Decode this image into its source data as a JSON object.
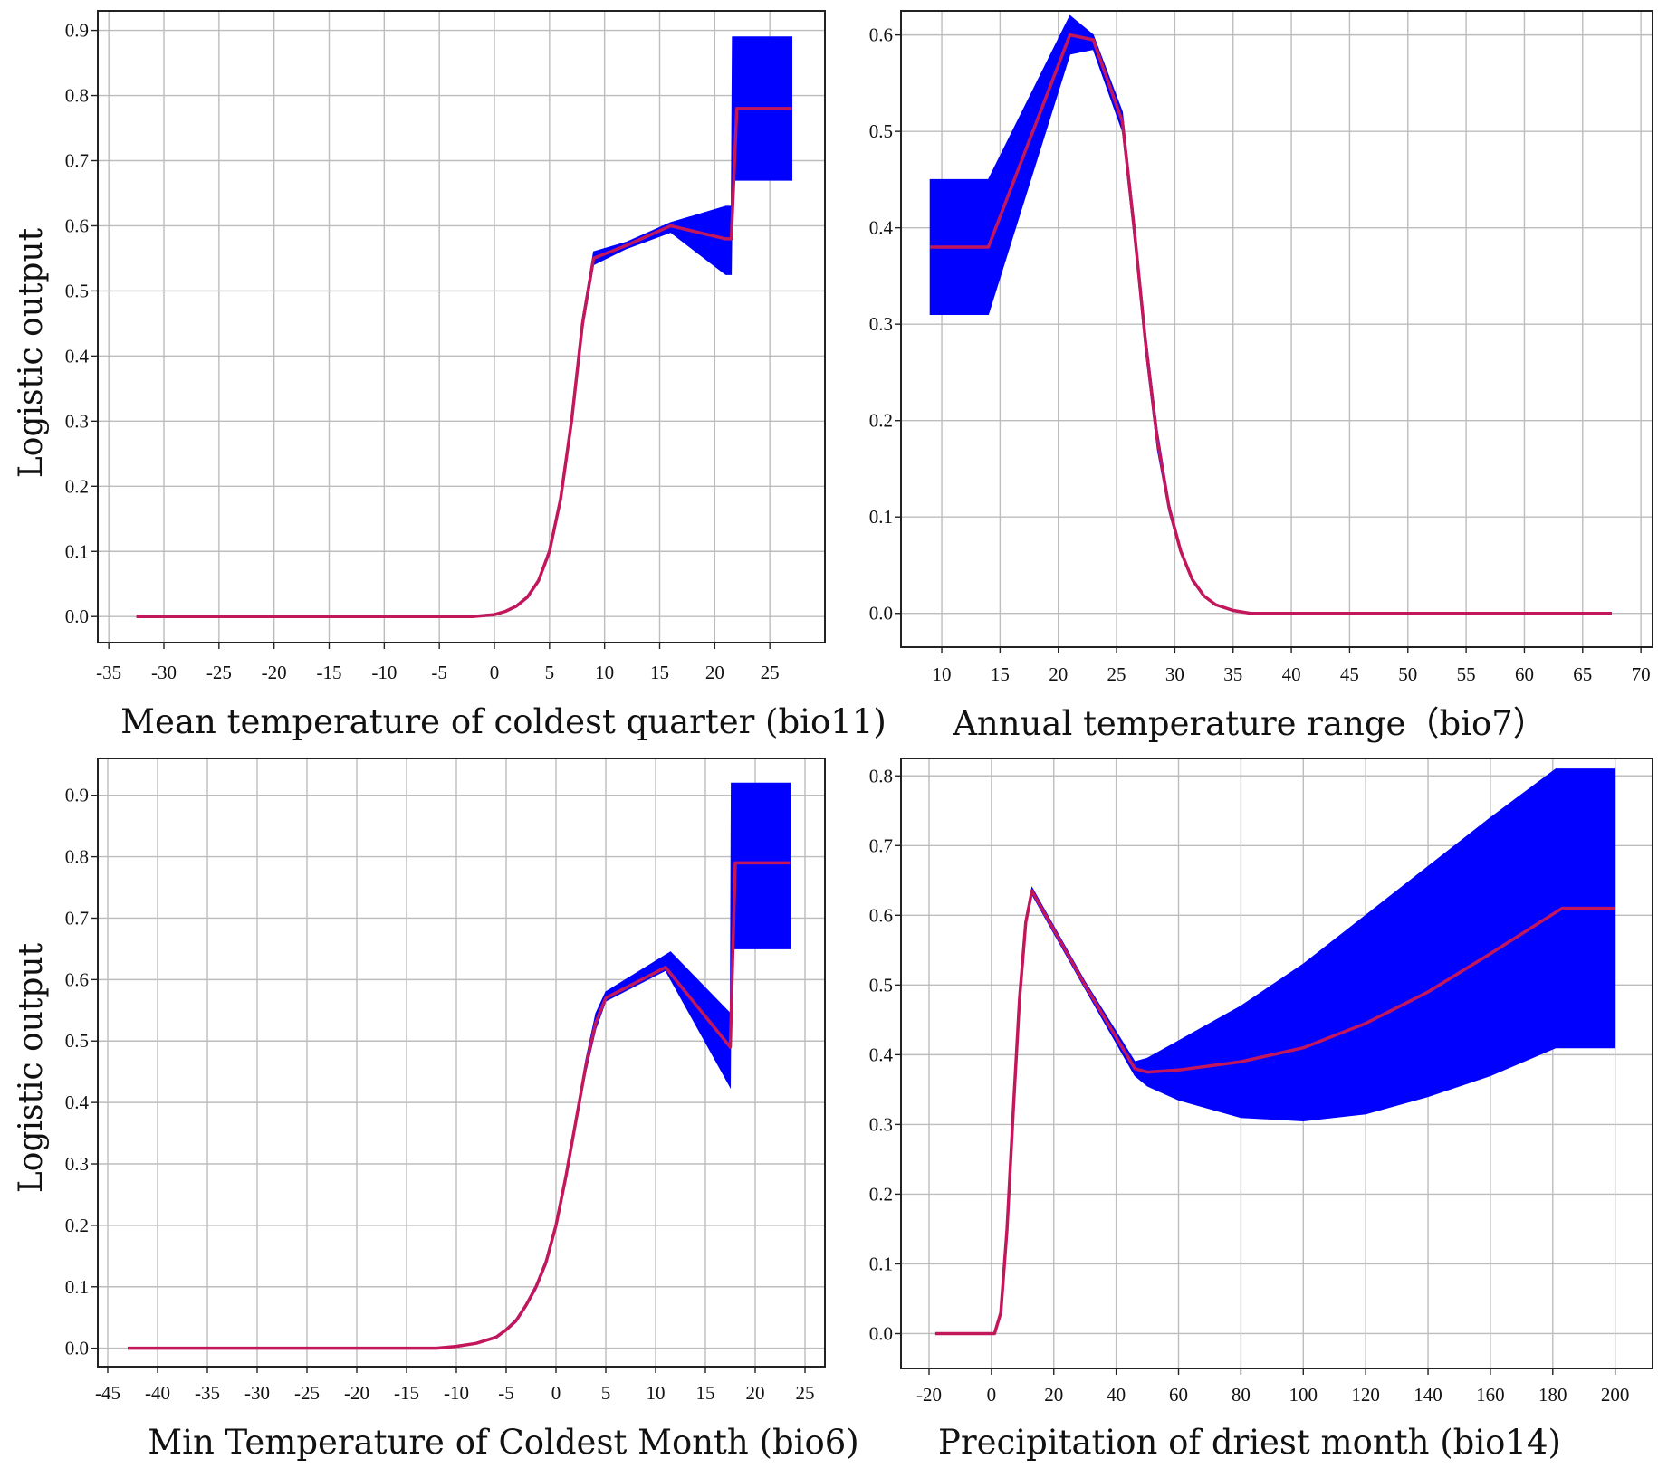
{
  "chart_data": [
    {
      "type": "line",
      "panel": "top-left",
      "ylabel": "Logistic output",
      "xlabel": "Mean temperature of coldest quarter (bio11)",
      "xlim": [
        -36,
        30
      ],
      "ylim": [
        -0.04,
        0.93
      ],
      "xticks": [
        -35,
        -30,
        -25,
        -20,
        -15,
        -10,
        -5,
        0,
        5,
        10,
        15,
        20,
        25
      ],
      "yticks": [
        0.0,
        0.1,
        0.2,
        0.3,
        0.4,
        0.5,
        0.6,
        0.7,
        0.8,
        0.9
      ],
      "ytick_labels": [
        "0.0",
        "0.1",
        "0.2",
        "0.3",
        "0.4",
        "0.5",
        "0.6",
        "0.7",
        "0.8",
        "0.9"
      ],
      "grid": true,
      "mean": {
        "x": [
          -32.5,
          -2,
          0,
          1,
          2,
          3,
          4,
          5,
          6,
          7,
          8,
          9,
          12,
          16,
          21,
          21.5,
          22,
          27
        ],
        "y": [
          0.0,
          0.0,
          0.003,
          0.008,
          0.016,
          0.03,
          0.055,
          0.1,
          0.18,
          0.3,
          0.45,
          0.55,
          0.57,
          0.6,
          0.58,
          0.58,
          0.78,
          0.78
        ]
      },
      "upper": {
        "x": [
          -32.5,
          -2,
          0,
          1,
          2,
          3,
          4,
          5,
          6,
          7,
          8,
          9,
          12,
          16,
          21,
          21.5,
          21.6,
          27
        ],
        "y": [
          0.0,
          0.0,
          0.004,
          0.009,
          0.018,
          0.032,
          0.058,
          0.105,
          0.185,
          0.31,
          0.46,
          0.56,
          0.575,
          0.605,
          0.63,
          0.63,
          0.89,
          0.89
        ]
      },
      "lower": {
        "x": [
          -32.5,
          -2,
          0,
          1,
          2,
          3,
          4,
          5,
          6,
          7,
          8,
          9,
          12,
          16,
          21,
          21.5,
          21.6,
          27
        ],
        "y": [
          0.0,
          0.0,
          0.002,
          0.007,
          0.014,
          0.028,
          0.052,
          0.095,
          0.175,
          0.29,
          0.44,
          0.54,
          0.565,
          0.59,
          0.525,
          0.525,
          0.67,
          0.67
        ]
      }
    },
    {
      "type": "line",
      "panel": "top-right",
      "ylabel": "",
      "xlabel": "Annual temperature range（bio7）",
      "xlim": [
        6.5,
        71
      ],
      "ylim": [
        -0.035,
        0.625
      ],
      "xticks": [
        10,
        15,
        20,
        25,
        30,
        35,
        40,
        45,
        50,
        55,
        60,
        65,
        70
      ],
      "yticks": [
        0.0,
        0.1,
        0.2,
        0.3,
        0.4,
        0.5,
        0.6
      ],
      "ytick_labels": [
        "0.0",
        "0.1",
        "0.2",
        "0.3",
        "0.4",
        "0.5",
        "0.6"
      ],
      "grid": true,
      "mean": {
        "x": [
          9,
          14,
          21,
          23,
          25.5,
          26.5,
          27.5,
          28.5,
          29.5,
          30.5,
          31.5,
          32.5,
          33.5,
          35,
          36.5,
          67.5
        ],
        "y": [
          0.38,
          0.38,
          0.6,
          0.595,
          0.51,
          0.4,
          0.28,
          0.18,
          0.11,
          0.065,
          0.035,
          0.018,
          0.009,
          0.003,
          0.0,
          0.0
        ]
      },
      "upper": {
        "x": [
          9,
          14,
          21,
          23,
          25.5,
          26.5,
          27.5,
          28.5,
          29.5,
          30.5,
          31.5,
          32.5,
          33.5,
          35,
          36.5,
          67.5
        ],
        "y": [
          0.45,
          0.45,
          0.62,
          0.6,
          0.52,
          0.41,
          0.29,
          0.19,
          0.115,
          0.068,
          0.037,
          0.019,
          0.01,
          0.004,
          0.0,
          0.0
        ]
      },
      "lower": {
        "x": [
          9,
          14,
          21,
          23,
          25.5,
          26.5,
          27.5,
          28.5,
          29.5,
          30.5,
          31.5,
          32.5,
          33.5,
          35,
          36.5,
          67.5
        ],
        "y": [
          0.31,
          0.31,
          0.58,
          0.585,
          0.5,
          0.39,
          0.27,
          0.17,
          0.105,
          0.062,
          0.033,
          0.017,
          0.008,
          0.002,
          0.0,
          0.0
        ]
      }
    },
    {
      "type": "line",
      "panel": "bottom-left",
      "ylabel": "Logistic output",
      "xlabel": "Min Temperature of Coldest Month (bio6)",
      "xlim": [
        -46,
        27
      ],
      "ylim": [
        -0.03,
        0.96
      ],
      "xticks": [
        -45,
        -40,
        -35,
        -30,
        -25,
        -20,
        -15,
        -10,
        -5,
        0,
        5,
        10,
        15,
        20,
        25
      ],
      "yticks": [
        0.0,
        0.1,
        0.2,
        0.3,
        0.4,
        0.5,
        0.6,
        0.7,
        0.8,
        0.9
      ],
      "ytick_labels": [
        "0.0",
        "0.1",
        "0.2",
        "0.3",
        "0.4",
        "0.5",
        "0.6",
        "0.7",
        "0.8",
        "0.9"
      ],
      "grid": true,
      "mean": {
        "x": [
          -43,
          -12,
          -10,
          -8,
          -6,
          -5,
          -4,
          -3,
          -2,
          -1,
          0,
          1,
          2,
          3,
          4,
          5,
          11,
          17.5,
          18,
          23.5
        ],
        "y": [
          0.0,
          0.0,
          0.003,
          0.008,
          0.018,
          0.03,
          0.045,
          0.07,
          0.1,
          0.14,
          0.2,
          0.28,
          0.37,
          0.46,
          0.53,
          0.57,
          0.62,
          0.49,
          0.79,
          0.79
        ]
      },
      "upper": {
        "x": [
          -43,
          -12,
          -10,
          -8,
          -6,
          -5,
          -4,
          -3,
          -2,
          -1,
          0,
          1,
          2,
          3,
          4,
          5,
          11.5,
          17.5,
          17.6,
          23.5
        ],
        "y": [
          0.0,
          0.0,
          0.004,
          0.009,
          0.02,
          0.032,
          0.048,
          0.073,
          0.104,
          0.145,
          0.205,
          0.285,
          0.375,
          0.47,
          0.545,
          0.58,
          0.645,
          0.545,
          0.92,
          0.92
        ]
      },
      "lower": {
        "x": [
          -43,
          -12,
          -10,
          -8,
          -6,
          -5,
          -4,
          -3,
          -2,
          -1,
          0,
          1,
          2,
          3,
          4,
          5,
          11,
          17.5,
          17.6,
          23.5
        ],
        "y": [
          0.0,
          0.0,
          0.002,
          0.007,
          0.016,
          0.028,
          0.042,
          0.067,
          0.096,
          0.135,
          0.195,
          0.275,
          0.365,
          0.45,
          0.52,
          0.565,
          0.615,
          0.425,
          0.65,
          0.65
        ]
      }
    },
    {
      "type": "line",
      "panel": "bottom-right",
      "ylabel": "",
      "xlabel": "Precipitation of driest month (bio14)",
      "xlim": [
        -29,
        212
      ],
      "ylim": [
        -0.05,
        0.825
      ],
      "xticks": [
        -20,
        0,
        20,
        40,
        60,
        80,
        100,
        120,
        140,
        160,
        180,
        200
      ],
      "yticks": [
        0.0,
        0.1,
        0.2,
        0.3,
        0.4,
        0.5,
        0.6,
        0.7,
        0.8
      ],
      "ytick_labels": [
        "0.0",
        "0.1",
        "0.2",
        "0.3",
        "0.4",
        "0.5",
        "0.6",
        "0.7",
        "0.8"
      ],
      "grid": true,
      "mean": {
        "x": [
          -18,
          1,
          3,
          5,
          7,
          9,
          11,
          13,
          30,
          46,
          50,
          60,
          80,
          100,
          120,
          140,
          160,
          183,
          200
        ],
        "y": [
          0.0,
          0.0,
          0.03,
          0.15,
          0.32,
          0.48,
          0.59,
          0.635,
          0.5,
          0.38,
          0.375,
          0.378,
          0.39,
          0.41,
          0.445,
          0.49,
          0.545,
          0.61,
          0.61
        ]
      },
      "upper": {
        "x": [
          -18,
          1,
          3,
          5,
          7,
          9,
          11,
          13,
          30,
          46,
          50,
          60,
          80,
          100,
          120,
          140,
          160,
          181,
          200
        ],
        "y": [
          0.0,
          0.0,
          0.032,
          0.155,
          0.325,
          0.485,
          0.595,
          0.64,
          0.505,
          0.39,
          0.395,
          0.42,
          0.47,
          0.53,
          0.6,
          0.67,
          0.74,
          0.81,
          0.81
        ]
      },
      "lower": {
        "x": [
          -18,
          1,
          3,
          5,
          7,
          9,
          11,
          13,
          30,
          46,
          50,
          60,
          80,
          100,
          120,
          140,
          160,
          181,
          200
        ],
        "y": [
          0.0,
          0.0,
          0.028,
          0.145,
          0.315,
          0.475,
          0.585,
          0.63,
          0.495,
          0.37,
          0.355,
          0.335,
          0.31,
          0.305,
          0.315,
          0.34,
          0.37,
          0.41,
          0.41
        ]
      }
    }
  ]
}
